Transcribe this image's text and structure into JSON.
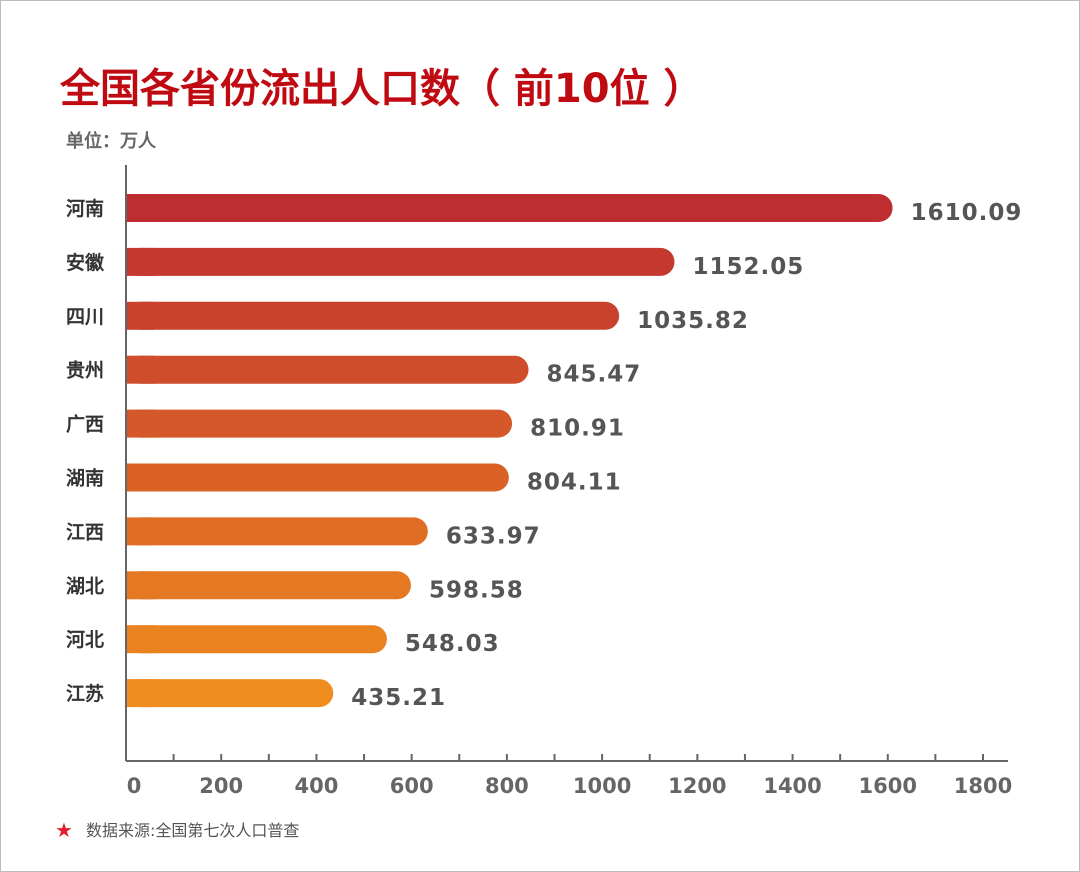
{
  "chart_data": {
    "type": "bar",
    "orientation": "horizontal",
    "title": "全国各省份流出人口数（ 前10位 ）",
    "unit_label": "单位：万人",
    "categories": [
      "河南",
      "安徽",
      "四川",
      "贵州",
      "广西",
      "湖南",
      "江西",
      "湖北",
      "河北",
      "江苏"
    ],
    "values": [
      1610.09,
      1152.05,
      1035.82,
      845.47,
      810.91,
      804.11,
      633.97,
      598.58,
      548.03,
      435.21
    ],
    "value_labels": [
      "1610.09",
      "1152.05",
      "1035.82",
      "845.47",
      "810.91",
      "804.11",
      "633.97",
      "598.58",
      "548.03",
      "435.21"
    ],
    "xlim": [
      0,
      1800
    ],
    "xticks": [
      "0",
      "200",
      "400",
      "600",
      "800",
      "1000",
      "1200",
      "1400",
      "1600",
      "1800"
    ],
    "grid": false,
    "colors": {
      "start": "#be2d31",
      "end": "#f08d1e",
      "title": "#c00a12",
      "star": "#e0202a"
    },
    "source": "数据来源:全国第七次人口普查",
    "source_icon": "star-icon"
  }
}
